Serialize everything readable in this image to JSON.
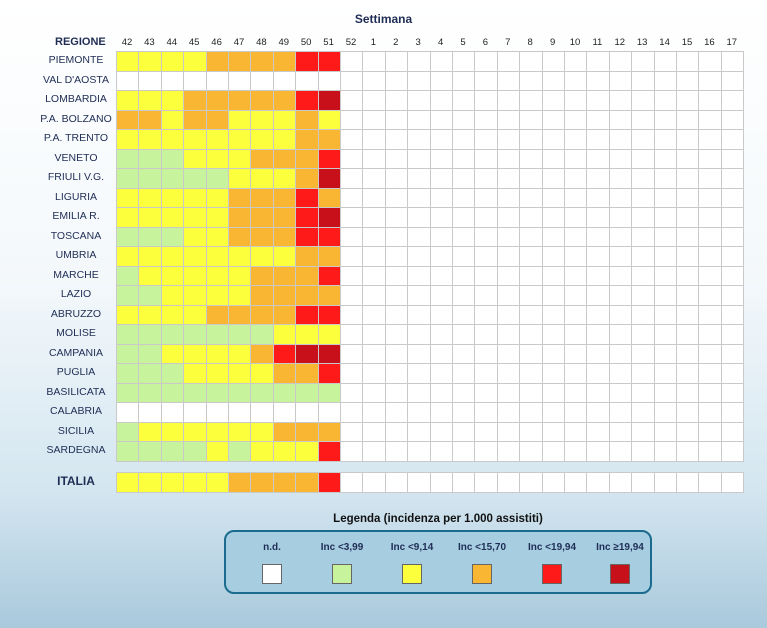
{
  "header": {
    "title": "Settimana",
    "region_header": "REGIONE"
  },
  "chart_data": {
    "type": "heatmap",
    "title": "Settimana",
    "x_label": "Settimana",
    "y_label": "REGIONE",
    "weeks": [
      "42",
      "43",
      "44",
      "45",
      "46",
      "47",
      "48",
      "49",
      "50",
      "51",
      "52",
      "1",
      "2",
      "3",
      "4",
      "5",
      "6",
      "7",
      "8",
      "9",
      "10",
      "11",
      "12",
      "13",
      "14",
      "15",
      "16",
      "17"
    ],
    "regions": [
      {
        "name": "PIEMONTE",
        "levels": [
          "y",
          "y",
          "y",
          "y",
          "o",
          "o",
          "o",
          "o",
          "r",
          "r"
        ]
      },
      {
        "name": "VAL D'AOSTA",
        "levels": [
          "w",
          "w",
          "w",
          "w",
          "w",
          "w",
          "w",
          "w",
          "w",
          "w"
        ]
      },
      {
        "name": "LOMBARDIA",
        "levels": [
          "y",
          "y",
          "y",
          "o",
          "o",
          "o",
          "o",
          "o",
          "r",
          "d"
        ]
      },
      {
        "name": "P.A. BOLZANO",
        "levels": [
          "o",
          "o",
          "y",
          "o",
          "o",
          "y",
          "y",
          "y",
          "o",
          "y"
        ]
      },
      {
        "name": "P.A. TRENTO",
        "levels": [
          "y",
          "y",
          "y",
          "y",
          "y",
          "y",
          "y",
          "y",
          "o",
          "o"
        ]
      },
      {
        "name": "VENETO",
        "levels": [
          "g",
          "g",
          "g",
          "y",
          "y",
          "y",
          "o",
          "o",
          "o",
          "r"
        ]
      },
      {
        "name": "FRIULI V.G.",
        "levels": [
          "g",
          "g",
          "g",
          "g",
          "g",
          "y",
          "y",
          "y",
          "o",
          "d"
        ]
      },
      {
        "name": "LIGURIA",
        "levels": [
          "y",
          "y",
          "y",
          "y",
          "y",
          "o",
          "o",
          "o",
          "r",
          "o"
        ]
      },
      {
        "name": "EMILIA R.",
        "levels": [
          "y",
          "y",
          "y",
          "y",
          "y",
          "o",
          "o",
          "o",
          "r",
          "d"
        ]
      },
      {
        "name": "TOSCANA",
        "levels": [
          "g",
          "g",
          "g",
          "y",
          "y",
          "o",
          "o",
          "o",
          "r",
          "r"
        ]
      },
      {
        "name": "UMBRIA",
        "levels": [
          "y",
          "y",
          "y",
          "y",
          "y",
          "y",
          "y",
          "y",
          "o",
          "o"
        ]
      },
      {
        "name": "MARCHE",
        "levels": [
          "g",
          "y",
          "y",
          "y",
          "y",
          "y",
          "o",
          "o",
          "o",
          "r"
        ]
      },
      {
        "name": "LAZIO",
        "levels": [
          "g",
          "g",
          "y",
          "y",
          "y",
          "y",
          "o",
          "o",
          "o",
          "o"
        ]
      },
      {
        "name": "ABRUZZO",
        "levels": [
          "y",
          "y",
          "y",
          "y",
          "o",
          "o",
          "o",
          "o",
          "r",
          "r"
        ]
      },
      {
        "name": "MOLISE",
        "levels": [
          "g",
          "g",
          "g",
          "g",
          "g",
          "g",
          "g",
          "y",
          "y",
          "y"
        ]
      },
      {
        "name": "CAMPANIA",
        "levels": [
          "g",
          "g",
          "y",
          "y",
          "y",
          "y",
          "o",
          "r",
          "d",
          "d"
        ]
      },
      {
        "name": "PUGLIA",
        "levels": [
          "g",
          "g",
          "g",
          "y",
          "y",
          "y",
          "y",
          "o",
          "o",
          "r"
        ]
      },
      {
        "name": "BASILICATA",
        "levels": [
          "g",
          "g",
          "g",
          "g",
          "g",
          "g",
          "g",
          "g",
          "g",
          "g"
        ]
      },
      {
        "name": "CALABRIA",
        "levels": [
          "w",
          "w",
          "w",
          "w",
          "w",
          "w",
          "w",
          "w",
          "w",
          "w"
        ]
      },
      {
        "name": "SICILIA",
        "levels": [
          "g",
          "y",
          "y",
          "y",
          "y",
          "y",
          "y",
          "o",
          "o",
          "o"
        ]
      },
      {
        "name": "SARDEGNA",
        "levels": [
          "g",
          "g",
          "g",
          "g",
          "y",
          "g",
          "y",
          "y",
          "y",
          "r"
        ]
      }
    ],
    "total": {
      "name": "ITALIA",
      "levels": [
        "y",
        "y",
        "y",
        "y",
        "y",
        "o",
        "o",
        "o",
        "o",
        "r"
      ]
    },
    "level_colors": {
      "w": "#ffffff",
      "g": "#c6f39b",
      "y": "#fbff3c",
      "o": "#f9b632",
      "r": "#ff1a1a",
      "d": "#c8101b"
    }
  },
  "legend": {
    "title": "Legenda (incidenza per 1.000 assistiti)",
    "items": [
      {
        "key": "w",
        "label": "n.d.",
        "color": "#ffffff"
      },
      {
        "key": "g",
        "label": "Inc <3,99",
        "color": "#c6f39b"
      },
      {
        "key": "y",
        "label": "Inc <9,14",
        "color": "#fbff3c"
      },
      {
        "key": "o",
        "label": "Inc <15,70",
        "color": "#f9b632"
      },
      {
        "key": "r",
        "label": "Inc <19,94",
        "color": "#ff1a1a"
      },
      {
        "key": "d",
        "label": "Inc ≥19,94",
        "color": "#c8101b"
      }
    ]
  }
}
